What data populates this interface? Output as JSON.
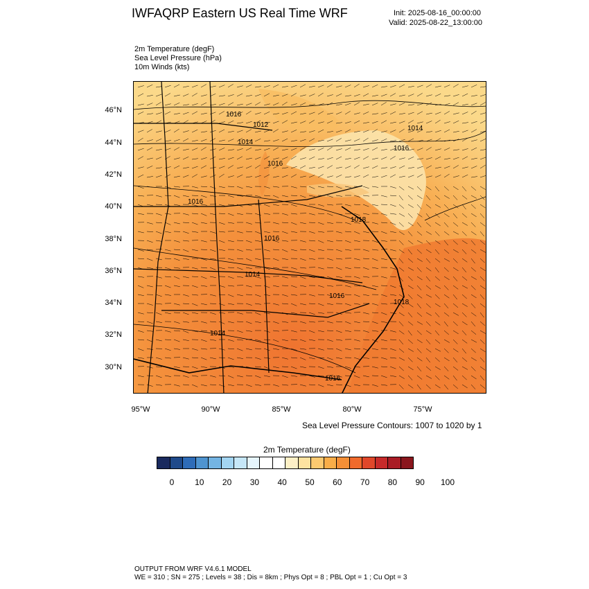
{
  "header": {
    "title": "IWFAQRP Eastern US Real Time WRF",
    "init": "Init: 2025-08-16_00:00:00",
    "valid": "Valid: 2025-08-22_13:00:00"
  },
  "fields": [
    "2m Temperature   (degF)",
    "Sea Level Pressure   (hPa)",
    "10m Winds   (kts)"
  ],
  "lat_labels": [
    "46°N",
    "44°N",
    "42°N",
    "40°N",
    "38°N",
    "36°N",
    "34°N",
    "32°N",
    "30°N"
  ],
  "lon_labels": [
    "95°W",
    "90°W",
    "85°W",
    "80°W",
    "75°W"
  ],
  "isobar_labels": [
    "1016",
    "1012",
    "1014",
    "1016",
    "1014",
    "1016",
    "1016",
    "1018",
    "1016",
    "1014",
    "1016",
    "1018",
    "1014",
    "1016"
  ],
  "contour_note": "Sea Level Pressure Contours: 1007 to 1020 by 1",
  "colorbar": {
    "title": "2m Temperature  (degF)",
    "ticks": [
      "0",
      "10",
      "20",
      "30",
      "40",
      "50",
      "60",
      "70",
      "80",
      "90",
      "100"
    ],
    "colors": [
      "#1a2a5e",
      "#1f4a8a",
      "#2e6cb8",
      "#4f94d0",
      "#74b4e3",
      "#a3d5f2",
      "#c6e7f8",
      "#e6f5fc",
      "#ffffff",
      "#ffffff",
      "#fdf0c6",
      "#fde2a0",
      "#fcc970",
      "#f9ad48",
      "#f58f36",
      "#f06a2c",
      "#e0472a",
      "#c72a2a",
      "#a91c25",
      "#8a161d"
    ]
  },
  "footer": {
    "line1": "OUTPUT FROM WRF V4.6.1 MODEL",
    "line2": "WE = 310 ; SN = 275 ; Levels = 38 ; Dis = 8km ; Phys Opt = 8 ; PBL Opt = 1 ; Cu Opt = 3"
  },
  "colors": {
    "cool": "#fbd98a",
    "mild": "#f9b35a",
    "warm": "#f4913c",
    "hot": "#ef7430",
    "hottest": "#e85a2a",
    "lines": "#000000"
  }
}
